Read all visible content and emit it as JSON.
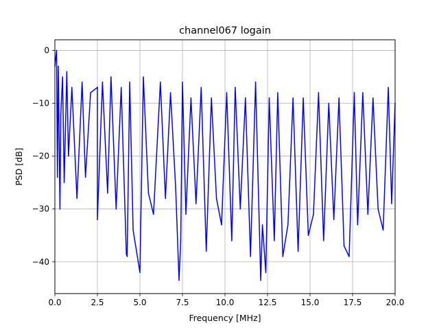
{
  "chart_data": {
    "type": "line",
    "title": "channel067 logain",
    "xlabel": "Frequency [MHz]",
    "ylabel": "PSD [dB]",
    "xlim": [
      0,
      20
    ],
    "ylim": [
      -46,
      2
    ],
    "xticks": [
      0,
      2.5,
      5,
      7.5,
      10,
      12.5,
      15,
      17.5,
      20
    ],
    "xtick_labels": [
      "0.0",
      "2.5",
      "5.0",
      "7.5",
      "10.0",
      "12.5",
      "15.0",
      "17.5",
      "20.0"
    ],
    "yticks": [
      0,
      -10,
      -20,
      -30,
      -40
    ],
    "ytick_labels": [
      "0",
      "−10",
      "−20",
      "−30",
      "−40"
    ],
    "grid": true,
    "series": [
      {
        "color": "#0000ff",
        "x": [
          0.0,
          0.1,
          0.15,
          0.2,
          0.3,
          0.35,
          0.45,
          0.55,
          0.7,
          0.8,
          1.0,
          1.3,
          1.6,
          1.8,
          2.1,
          2.5,
          2.5,
          2.8,
          3.1,
          3.3,
          3.6,
          3.9,
          4.2,
          4.25,
          4.4,
          4.6,
          4.9,
          5.0,
          5.2,
          5.5,
          5.8,
          6.2,
          6.5,
          6.8,
          7.1,
          7.3,
          7.4,
          7.5,
          7.7,
          8.0,
          8.3,
          8.6,
          8.9,
          9.2,
          9.5,
          9.8,
          10.1,
          10.4,
          10.6,
          10.9,
          11.2,
          11.5,
          11.8,
          12.1,
          12.2,
          12.4,
          12.6,
          12.9,
          13.1,
          13.4,
          13.7,
          14.0,
          14.3,
          14.6,
          14.9,
          15.2,
          15.5,
          15.8,
          16.1,
          16.4,
          16.7,
          17.0,
          17.3,
          17.6,
          17.8,
          18.1,
          18.4,
          18.7,
          19.0,
          19.3,
          19.6,
          19.8,
          20.0
        ],
        "y": [
          -3,
          0,
          -24,
          -3,
          -30,
          -12,
          -5,
          -25,
          -4,
          -20,
          -7,
          -28,
          -6,
          -24,
          -8,
          -7,
          -32,
          -6,
          -27,
          -5,
          -30,
          -7,
          -38.5,
          -39,
          -6,
          -34,
          -40,
          -42,
          -5,
          -27,
          -31,
          -6,
          -28,
          -8,
          -26,
          -43.5,
          -36,
          -6,
          -31,
          -9,
          -29,
          -7,
          -38,
          -9,
          -28,
          -33,
          -8,
          -36,
          -7,
          -30,
          -9,
          -39,
          -6,
          -43.5,
          -33,
          -42,
          -9,
          -36,
          -8,
          -39,
          -33,
          -9,
          -38,
          -9,
          -35,
          -31,
          -8,
          -36,
          -10,
          -32,
          -9,
          -37,
          -39,
          -8,
          -33,
          -8,
          -31,
          -9,
          -30,
          -34,
          -7,
          -29,
          -10
        ]
      }
    ]
  }
}
